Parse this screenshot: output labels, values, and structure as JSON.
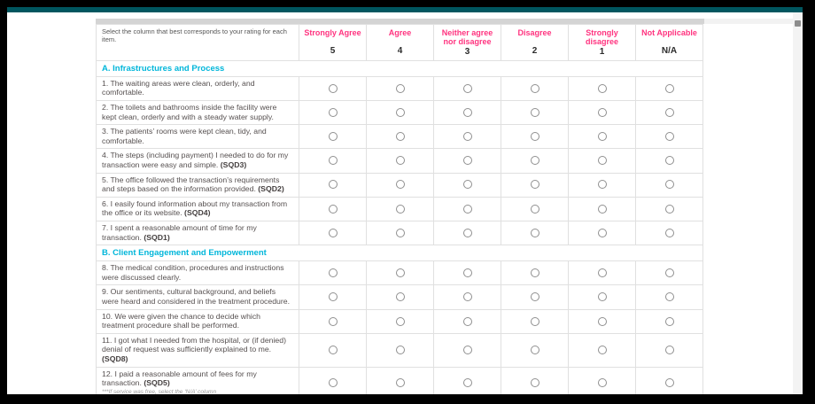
{
  "colors": {
    "top_bar_teal": "#00565f",
    "header_pink": "#ff337f",
    "section_cyan": "#00b6da",
    "cell_border": "#e0e0e0"
  },
  "header": {
    "instruction": "Select the column that best corresponds to your rating for each item.",
    "columns": [
      {
        "label": "Strongly Agree",
        "value": "5"
      },
      {
        "label": "Agree",
        "value": "4"
      },
      {
        "label": "Neither agree nor disagree",
        "value": "3"
      },
      {
        "label": "Disagree",
        "value": "2"
      },
      {
        "label": "Strongly disagree",
        "value": "1"
      },
      {
        "label": "Not Applicable",
        "value": "N/A"
      }
    ]
  },
  "sections": [
    {
      "title": "A. Infrastructures and Process",
      "rows": [
        {
          "text": "1. The waiting areas were clean, orderly, and comfortable."
        },
        {
          "text": "2. The toilets and bathrooms inside the facility were kept clean, orderly and with a steady water supply."
        },
        {
          "text": "3. The patients’ rooms were kept clean, tidy, and comfortable."
        },
        {
          "text": "4. The steps (including payment) I needed to do for my transaction were easy and simple.",
          "code": "(SQD3)"
        },
        {
          "text": "5. The office followed the transaction’s requirements and steps based on the information provided.",
          "code": "(SQD2)"
        },
        {
          "text": "6. I easily found information about my transaction from the office or its website.",
          "code": "(SQD4)"
        },
        {
          "text": "7. I spent a reasonable amount of time for my transaction.",
          "code": "(SQD1)"
        }
      ]
    },
    {
      "title": "B. Client Engagement and Empowerment",
      "rows": [
        {
          "text": "8. The medical condition, procedures and instructions were discussed clearly."
        },
        {
          "text": "9. Our sentiments, cultural background, and beliefs were heard and considered in the treatment procedure."
        },
        {
          "text": "10. We were given the chance to decide which treatment procedure shall be performed."
        },
        {
          "text": "11. I got what I needed from the hospital, or (if denied) denial of request was sufficiently explained to me.",
          "code": "(SQD8)"
        },
        {
          "text": "12. I paid a reasonable amount of fees for my transaction.",
          "code": "(SQD5)",
          "note": "***If service was free, select the ‘N/A’ column"
        }
      ]
    }
  ],
  "radio_state": "unselected"
}
